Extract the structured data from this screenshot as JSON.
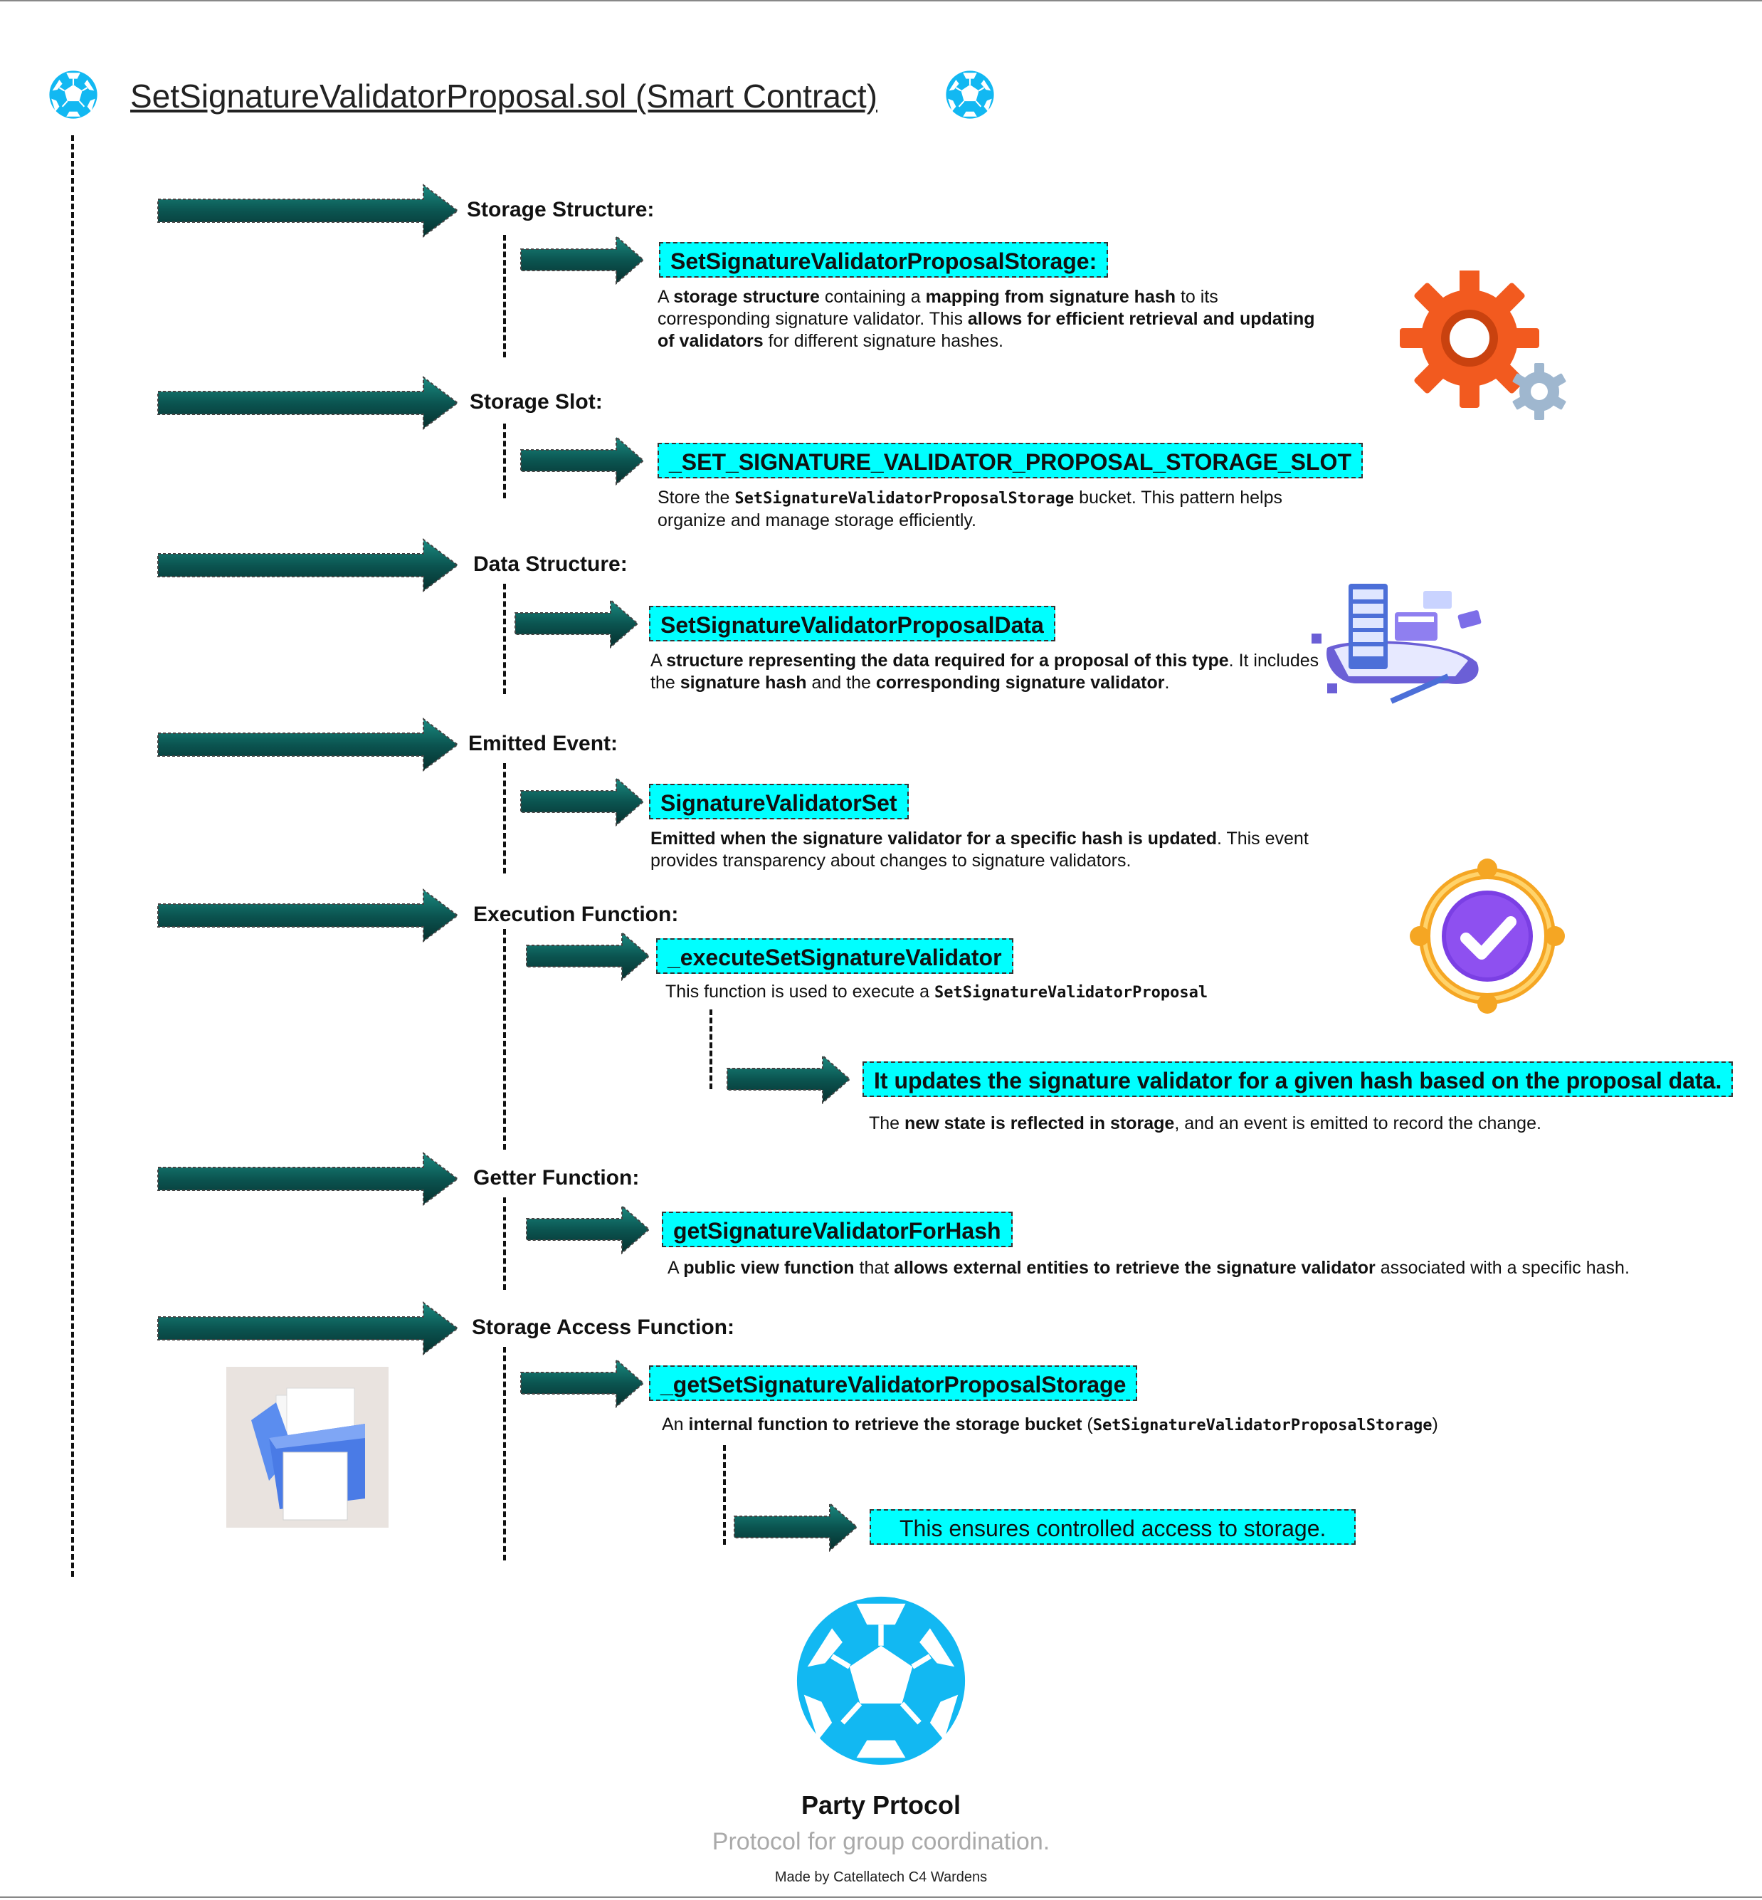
{
  "title": "SetSignatureValidatorProposal.sol (Smart Contract)",
  "sections": [
    {
      "heading": "Storage Structure:",
      "box": "SetSignatureValidatorProposalStorage:",
      "desc": [
        {
          "t": "A "
        },
        {
          "t": "storage structure",
          "b": true
        },
        {
          "t": " containing a "
        },
        {
          "t": "mapping from signature hash",
          "b": true
        },
        {
          "t": " to its corresponding signature validator. This "
        },
        {
          "t": "allows for efficient retrieval and updating of validators",
          "b": true
        },
        {
          "t": " for different signature hashes."
        }
      ]
    },
    {
      "heading": "Storage Slot:",
      "box": "_SET_SIGNATURE_VALIDATOR_PROPOSAL_STORAGE_SLOT",
      "desc": [
        {
          "t": "Store the "
        },
        {
          "t": "SetSignatureValidatorProposalStorage",
          "m": true
        },
        {
          "t": " bucket. This pattern helps organize and manage storage efficiently."
        }
      ]
    },
    {
      "heading": "Data Structure:",
      "box": "SetSignatureValidatorProposalData",
      "desc": [
        {
          "t": "A "
        },
        {
          "t": "structure representing the data required for a proposal of this type",
          "b": true
        },
        {
          "t": ". It includes the "
        },
        {
          "t": "signature hash",
          "b": true
        },
        {
          "t": " and the "
        },
        {
          "t": "corresponding signature validator",
          "b": true
        },
        {
          "t": "."
        }
      ]
    },
    {
      "heading": "Emitted Event:",
      "box": "SignatureValidatorSet",
      "desc": [
        {
          "t": "Emitted when the signature validator for a specific hash is updated",
          "b": true
        },
        {
          "t": ". This event provides transparency about changes to signature validators."
        }
      ]
    },
    {
      "heading": "Execution Function:",
      "box": "_executeSetSignatureValidator",
      "desc": [
        {
          "t": "This function is used to execute a "
        },
        {
          "t": "SetSignatureValidatorProposal",
          "m": true
        }
      ],
      "sub_box": "It updates the signature validator for a given hash based on the proposal data.",
      "sub_desc": [
        {
          "t": "The "
        },
        {
          "t": "new state is reflected in storage",
          "b": true
        },
        {
          "t": ", and an event is emitted to record the change."
        }
      ]
    },
    {
      "heading": "Getter Function:",
      "box": "getSignatureValidatorForHash",
      "desc": [
        {
          "t": "A "
        },
        {
          "t": "public view function",
          "b": true
        },
        {
          "t": " that "
        },
        {
          "t": "allows external entities to retrieve the signature validator",
          "b": true
        },
        {
          "t": " associated with a specific hash."
        }
      ]
    },
    {
      "heading": "Storage Access Function:",
      "box": "_getSetSignatureValidatorProposalStorage",
      "desc": [
        {
          "t": "An "
        },
        {
          "t": "internal function to retrieve the storage bucket",
          "b": true
        },
        {
          "t": " ("
        },
        {
          "t": "SetSignatureValidatorProposalStorage",
          "m": true
        },
        {
          "t": ")"
        }
      ],
      "sub_box": "This ensures controlled access to storage."
    }
  ],
  "footer": {
    "name": "Party Prtocol",
    "tagline": "Protocol for group coordination.",
    "credit": "Made by Catellatech C4 Wardens"
  },
  "colors": {
    "highlight": "#00ffff",
    "arrow": "#0a5f5a",
    "logo": "#12b8f2",
    "gear": "#f25a1f"
  }
}
